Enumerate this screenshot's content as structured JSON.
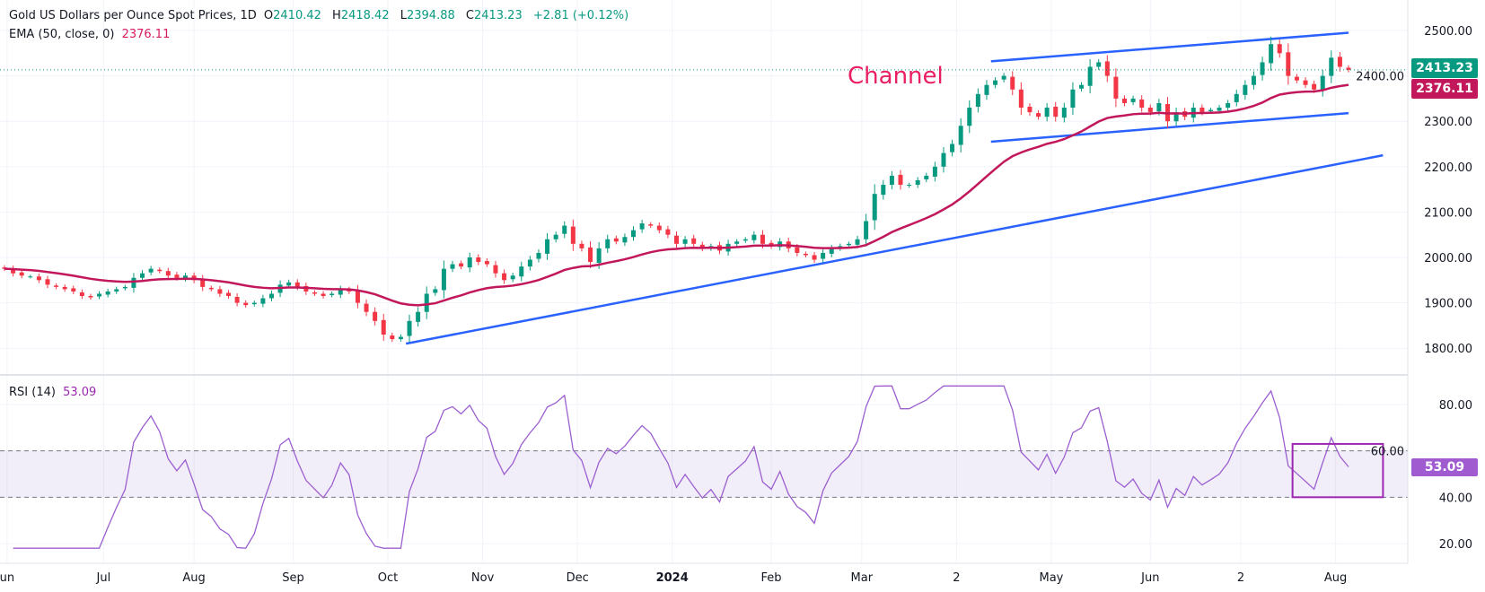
{
  "header": {
    "symbol": "Gold US Dollars per Ounce Spot Prices, 1D",
    "open_label": "O",
    "open": "2410.42",
    "high_label": "H",
    "high": "2418.42",
    "low_label": "L",
    "low": "2394.88",
    "close_label": "C",
    "close": "2413.23",
    "change": "+2.81 (+0.12%)"
  },
  "ema_legend": {
    "label": "EMA (50, close, 0)",
    "value": "2376.11"
  },
  "rsi_legend": {
    "label": "RSI (14)",
    "value": "53.09"
  },
  "annotation": "Channel",
  "price_tags": {
    "last": "2413.23",
    "ema": "2376.11",
    "rsi": "53.09"
  },
  "colors": {
    "up": "#089981",
    "down": "#f23645",
    "ema": "#c2185b",
    "trend": "#2962ff",
    "rsi": "#9c5fd0",
    "rsi_box": "#9c27b0"
  },
  "chart_data": [
    {
      "type": "candlestick",
      "title": "Gold US Dollars per Ounce Spot Prices, 1D",
      "ylim": [
        1760,
        2540
      ],
      "y_ticks": [
        "1800.00",
        "1900.00",
        "2000.00",
        "2100.00",
        "2200.00",
        "2300.00",
        "2400.00",
        "2500.00"
      ],
      "x_ticks": [
        {
          "label": "un",
          "idx": 0.3
        },
        {
          "label": "Jul",
          "idx": 11.5
        },
        {
          "label": "Aug",
          "idx": 22
        },
        {
          "label": "Sep",
          "idx": 33.5
        },
        {
          "label": "Oct",
          "idx": 44.5
        },
        {
          "label": "Nov",
          "idx": 55.5
        },
        {
          "label": "Dec",
          "idx": 66.5
        },
        {
          "label": "2024",
          "idx": 77.5,
          "bold": true
        },
        {
          "label": "Feb",
          "idx": 89
        },
        {
          "label": "Mar",
          "idx": 99.5
        },
        {
          "label": "2",
          "idx": 110.5
        },
        {
          "label": "May",
          "idx": 121.5
        },
        {
          "label": "Jun",
          "idx": 133
        },
        {
          "label": "2",
          "idx": 143.5
        },
        {
          "label": "Aug",
          "idx": 154.5
        }
      ],
      "closes": [
        1975,
        1965,
        1960,
        1958,
        1950,
        1940,
        1935,
        1930,
        1925,
        1915,
        1912,
        1920,
        1925,
        1930,
        1935,
        1955,
        1965,
        1975,
        1970,
        1960,
        1955,
        1960,
        1950,
        1935,
        1930,
        1920,
        1915,
        1900,
        1895,
        1900,
        1910,
        1920,
        1940,
        1945,
        1935,
        1925,
        1920,
        1915,
        1920,
        1930,
        1925,
        1900,
        1880,
        1860,
        1830,
        1820,
        1825,
        1860,
        1880,
        1920,
        1930,
        1975,
        1985,
        1980,
        2000,
        1990,
        1985,
        1965,
        1950,
        1960,
        1980,
        1995,
        2010,
        2040,
        2050,
        2070,
        2030,
        2020,
        1990,
        2020,
        2040,
        2035,
        2045,
        2060,
        2075,
        2070,
        2060,
        2050,
        2030,
        2040,
        2030,
        2020,
        2025,
        2015,
        2030,
        2035,
        2040,
        2050,
        2030,
        2025,
        2035,
        2020,
        2010,
        2005,
        1995,
        2010,
        2020,
        2025,
        2030,
        2040,
        2080,
        2140,
        2160,
        2180,
        2160,
        2160,
        2170,
        2180,
        2200,
        2230,
        2250,
        2290,
        2330,
        2360,
        2380,
        2390,
        2400,
        2370,
        2330,
        2320,
        2310,
        2330,
        2310,
        2330,
        2370,
        2380,
        2420,
        2430,
        2400,
        2350,
        2340,
        2350,
        2330,
        2320,
        2340,
        2300,
        2320,
        2310,
        2330,
        2320,
        2325,
        2330,
        2340,
        2360,
        2380,
        2400,
        2430,
        2470,
        2450,
        2400,
        2390,
        2380,
        2370,
        2400,
        2440,
        2420,
        2413.23
      ],
      "series": [
        {
          "name": "EMA (50, close, 0)",
          "last": 2376.11
        }
      ],
      "trendlines": [
        {
          "name": "support-trendline",
          "from": {
            "idx": 46.6,
            "price": 1810
          },
          "to": {
            "idx": 160,
            "price": 2225
          }
        },
        {
          "name": "channel-upper",
          "from": {
            "idx": 114.5,
            "price": 2432
          },
          "to": {
            "idx": 156,
            "price": 2495
          }
        },
        {
          "name": "channel-lower",
          "from": {
            "idx": 114.5,
            "price": 2255
          },
          "to": {
            "idx": 156,
            "price": 2318
          }
        }
      ],
      "last_price_line": 2413.23
    },
    {
      "type": "line",
      "title": "RSI (14)",
      "ylim": [
        10,
        90
      ],
      "y_ticks": [
        "20.00",
        "40.00",
        "60.00",
        "80.00"
      ],
      "band": [
        40,
        60
      ],
      "highlight_box": {
        "from_idx": 149.5,
        "to_idx": 160,
        "low": 40,
        "high": 63
      },
      "last": 53.09
    }
  ]
}
